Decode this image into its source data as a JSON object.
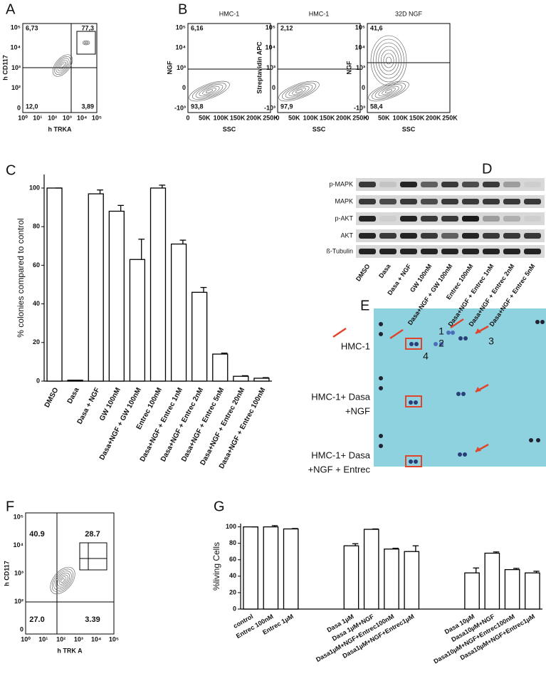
{
  "panel_labels": [
    "A",
    "B",
    "C",
    "D",
    "E",
    "F",
    "G"
  ],
  "flow_A": {
    "x_label": "h TRKA",
    "y_label": "h CD117",
    "xticks": [
      "10⁰",
      "10¹",
      "10²",
      "10³",
      "10⁴",
      "10⁵"
    ],
    "yticks": [
      "10⁵",
      "10⁴",
      "10³",
      "10²",
      "0"
    ],
    "quadrants": [
      "6,73",
      "77,3",
      "12,0",
      "3,89"
    ]
  },
  "flow_B": {
    "xticks": [
      "0",
      "50K",
      "100K",
      "150K",
      "200K",
      "250K"
    ],
    "yticks": [
      "10⁵",
      "10⁴",
      "10³",
      "0",
      "-10³"
    ],
    "plots": [
      {
        "title": "HMC-1",
        "y_label": "NGF",
        "x_label": "SSC",
        "quadrants": [
          "6,16",
          "93,8"
        ]
      },
      {
        "title": "HMC-1",
        "y_label": "Streptavidin APC",
        "x_label": "SSC",
        "quadrants": [
          "2,12",
          "97,9"
        ]
      },
      {
        "title": "32D NGF",
        "y_label": "NGF",
        "x_label": "SSC",
        "quadrants": [
          "41,6",
          "58,4"
        ]
      }
    ]
  },
  "blot_D": {
    "rows": [
      "p-MAPK",
      "MAPK",
      "p-AKT",
      "AKT",
      "ß-Tubulin"
    ],
    "lanes": [
      "DMSO",
      "Dasa",
      "Dasa + NGF",
      "GW 100nM",
      "Dasa+NGF + GW 100nM",
      "Entrec 100nM",
      "Dasa+NGF + Entrec 1nM",
      "Dasa+NGF + Entrec 2nM",
      "Dasa+NGF + Entrec 5nM"
    ]
  },
  "array_E": {
    "rows": [
      [
        "HMC-1"
      ],
      [
        "HMC-1+ Dasa",
        "+NGF"
      ],
      [
        "HMC-1+ Dasa",
        "+NGF + Entrec"
      ]
    ],
    "numbers": [
      "1",
      "2",
      "3",
      "4"
    ]
  },
  "flow_F": {
    "x_label": "h TRK A",
    "y_label": "h CD117",
    "xticks": [
      "10⁰",
      "10¹",
      "10²",
      "10³",
      "10⁴",
      "10⁵"
    ],
    "yticks": [
      "10⁵",
      "10⁴",
      "10³",
      "10²",
      "0"
    ],
    "quadrants": [
      "40.9",
      "28.7",
      "27.0",
      "3.39"
    ]
  },
  "chart_data": [
    {
      "type": "bar",
      "y_label": "% colonies compared to control",
      "color": "#ffffff",
      "categories": [
        "DMSO",
        "Dasa",
        "Dasa + NGF",
        "GW 100nM",
        "Dasa+NGF + GW 100nM",
        "Entrec 100nM",
        "Dasa+NGF + Entrec 1nM",
        "Dasa+NGF + Entrec 2nM",
        "Dasa+NGF + Entrec 5nM",
        "Dasa+NGF + Entrec 20nM",
        "Dasa+NGF + Entrec 100nM"
      ],
      "values": [
        100,
        0.5,
        97,
        88,
        63,
        100,
        71,
        46,
        14,
        2.5,
        1.5
      ],
      "errors": [
        0,
        0,
        2,
        3,
        10.5,
        1.5,
        2,
        2.5,
        0.5,
        0.3,
        0.3
      ],
      "ylim": [
        0,
        107
      ],
      "yticks": [
        0,
        20,
        40,
        60,
        80,
        100
      ]
    },
    {
      "type": "bar",
      "y_label": "%living Cells",
      "color": "#ffffff",
      "categories": [
        "control",
        "Entrec 100nM",
        "Entrec 1µM",
        null,
        null,
        "Dasa 1µM",
        "Dasa 1µM+NGF",
        "Dasa1µM+NGF+Entrec100nM",
        "Dasa1µM+NGF+Entrec1µM",
        null,
        null,
        "Dasa 10µM",
        "Dasa10µM+NGF",
        "Dasa10µM+NGF+Entrec100nM",
        "Dasa10µM+NGF+Entrec1µM"
      ],
      "values": [
        100,
        100,
        97.5,
        null,
        null,
        77,
        97,
        73,
        70,
        null,
        null,
        44,
        68,
        48,
        44
      ],
      "errors": [
        0,
        1.5,
        0.5,
        null,
        null,
        2.5,
        0.5,
        1,
        7,
        null,
        null,
        6,
        1.5,
        1.5,
        2
      ],
      "ylim": [
        0,
        104
      ],
      "yticks": [
        0,
        20,
        40,
        60,
        80,
        100
      ]
    }
  ]
}
